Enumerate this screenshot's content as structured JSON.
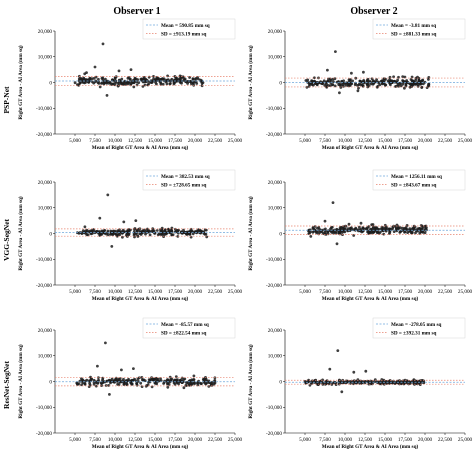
{
  "figure": {
    "columns": [
      "Observer 1",
      "Observer 2"
    ],
    "rows": [
      "PSP-Net",
      "VGG-SegNet",
      "ResNet-SegNet"
    ]
  },
  "chart_data": [
    {
      "type": "scatter",
      "row": "PSP-Net",
      "column": "Observer 1",
      "mean_label": "Mean = 590.85 mm sq",
      "sd_label": "SD = ±913.19 mm sq",
      "mean": 590.85,
      "sd": 913.19,
      "points": []
    },
    {
      "type": "scatter",
      "row": "PSP-Net",
      "column": "Observer 2",
      "mean_label": "Mean = -3.81 mm sq",
      "sd_label": "SD = ±881.33 mm sq",
      "mean": -3.81,
      "sd": 881.33,
      "points": []
    },
    {
      "type": "scatter",
      "row": "VGG-SegNet",
      "column": "Observer 1",
      "mean_label": "Mean = 382.53 mm sq",
      "sd_label": "SD = ±728.65 mm sq",
      "mean": 382.53,
      "sd": 728.65,
      "points": []
    },
    {
      "type": "scatter",
      "row": "VGG-SegNet",
      "column": "Observer 2",
      "mean_label": "Mean = 1256.11 mm sq",
      "sd_label": "SD = ±843.67 mm sq",
      "mean": 1256.11,
      "sd": 843.67,
      "points": []
    },
    {
      "type": "scatter",
      "row": "ResNet-SegNet",
      "column": "Observer 1",
      "mean_label": "Mean = -85.57 mm sq",
      "sd_label": "SD = ±822.54 mm sq",
      "mean": -85.57,
      "sd": 822.54,
      "points": []
    },
    {
      "type": "scatter",
      "row": "ResNet-SegNet",
      "column": "Observer 2",
      "mean_label": "Mean = -278.05 mm sq",
      "sd_label": "SD = ±392.31 mm sq",
      "mean": -278.05,
      "sd": 392.31,
      "points": []
    }
  ],
  "axes": {
    "xlabel": "Mean of Right GT Area & AI Area (mm sq)",
    "ylabel": "Right GT Area - AI Area (mm sq)",
    "xlim": [
      2500,
      25000
    ],
    "ylim": [
      -20000,
      20000
    ],
    "xticks": [
      "5,000",
      "7,500",
      "10,000",
      "12,500",
      "15,000",
      "17,500",
      "20,000",
      "22,500",
      "25,000"
    ],
    "xtick_values": [
      5000,
      7500,
      10000,
      12500,
      15000,
      17500,
      20000,
      22500,
      25000
    ],
    "yticks": [
      "20,000",
      "10,000",
      "0",
      "-10,000",
      "-20,000"
    ],
    "ytick_values": [
      20000,
      10000,
      0,
      -10000,
      -20000
    ]
  },
  "colors": {
    "points": "#1c1c1c",
    "mean_line": "#6fa8dc",
    "sd_line": "#e8836f",
    "axis": "#000000"
  }
}
